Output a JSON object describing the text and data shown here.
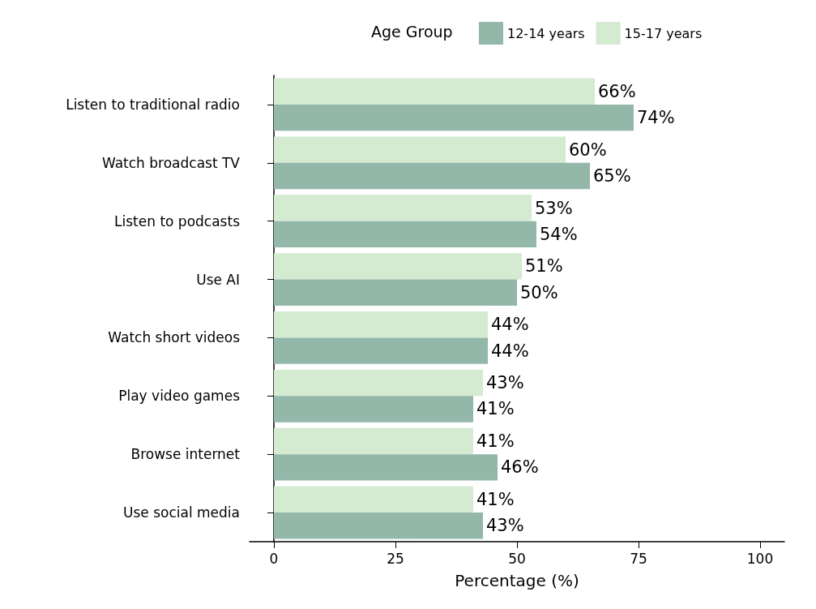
{
  "chart_data": {
    "type": "bar",
    "orientation": "horizontal",
    "xlabel": "Percentage (%)",
    "legend_title": "Age Group",
    "legend": "top",
    "grid": false,
    "categories": [
      "Listen to traditional radio",
      "Watch broadcast TV",
      "Listen to podcasts",
      "Use AI",
      "Watch short videos",
      "Play video games",
      "Browse internet",
      "Use social media"
    ],
    "series": [
      {
        "name": "12-14 years",
        "color": "#93b8aa",
        "values": [
          74,
          65,
          54,
          50,
          44,
          41,
          46,
          43
        ],
        "value_labels": [
          "74%",
          "65%",
          "54%",
          "50%",
          "44%",
          "41%",
          "46%",
          "43%"
        ]
      },
      {
        "name": "15-17 years",
        "color": "#d4ead1",
        "values": [
          66,
          60,
          53,
          51,
          44,
          43,
          41,
          41
        ],
        "value_labels": [
          "66%",
          "60%",
          "53%",
          "51%",
          "44%",
          "43%",
          "41%",
          "41%"
        ]
      }
    ],
    "xlim": [
      -5,
      105
    ],
    "xticks": [
      0,
      25,
      50,
      75,
      100
    ]
  }
}
